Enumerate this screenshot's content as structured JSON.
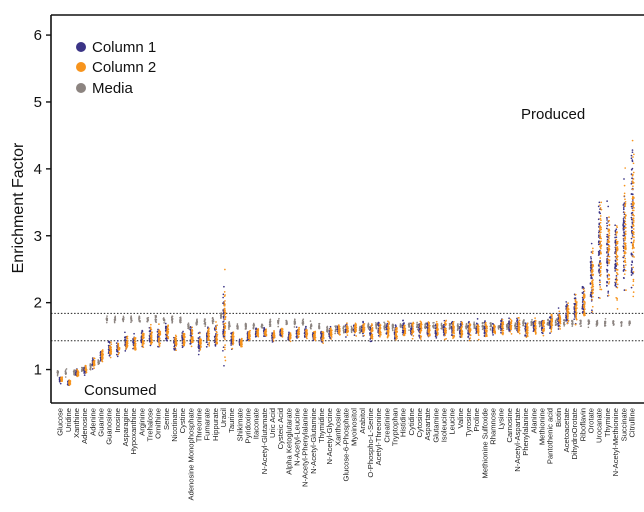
{
  "chart_data": {
    "type": "scatter",
    "ylabel": "Enrichment Factor",
    "ylim": [
      0.5,
      6.3
    ],
    "yticks": [
      1,
      2,
      3,
      4,
      5,
      6
    ],
    "legend_position": "top-left",
    "series": [
      {
        "name": "Column 1",
        "color": "#3b3486"
      },
      {
        "name": "Column 2",
        "color": "#f7941d"
      },
      {
        "name": "Media",
        "color": "#8c8480"
      }
    ],
    "thresholds": [
      1.43,
      1.84
    ],
    "annotations": {
      "produced": "Produced",
      "consumed": "Consumed"
    },
    "categories": [
      "Glucose",
      "Uridine",
      "Xanthine",
      "Adenosine",
      "Adenine",
      "Guanine",
      "Guanosine",
      "Inosine",
      "Asparagine",
      "Hypoxanthine",
      "Arginine",
      "Trehalose",
      "Ornithine",
      "Serine",
      "Nicotinate",
      "Cystine",
      "Adenosine Monophosphate",
      "Threonine",
      "Fumarate",
      "Hippurate",
      "Uracil",
      "Taurine",
      "Shikimate",
      "Pyridoxine",
      "Itaconate",
      "N-Acetyl-Glutamate",
      "Uric Acid",
      "Cysteic Acid",
      "Alpha Ketoglutarate",
      "N-Acetyl-Leucine",
      "N-Acetyl-Phenylalanine",
      "N-Acetyl-Glutamine",
      "Thymidine",
      "N-Acetyl-Glycine",
      "Xanthosine",
      "Glucose-6-Phosphate",
      "Myoinositol",
      "Arabitol",
      "O-Phospho-L-Serine",
      "Acetyl-Threonine",
      "Creatinine",
      "Tryptophan",
      "Histidine",
      "Cytidine",
      "Cytosine",
      "Aspartate",
      "Glutamine",
      "Isoleucine",
      "Leucine",
      "Valine",
      "Tyrosine",
      "Proline",
      "Methionine Sulfoxide",
      "Rhamnose",
      "Lysine",
      "Carnosine",
      "N-Acetyl-Aspartate",
      "Phenylalanine",
      "Alanine",
      "Methionine",
      "Pantothenic acid",
      "Biotin",
      "Acetoacetate",
      "DihydroOrotate",
      "Riboflavin",
      "Orotate",
      "Urocanate",
      "Thymine",
      "N-Acetyl-Methionine",
      "Succinate",
      "Citrulline"
    ],
    "media_values": [
      0.95,
      0.95,
      0.95,
      1.0,
      1.05,
      1.1,
      1.75,
      1.75,
      1.75,
      1.75,
      1.75,
      1.75,
      1.75,
      1.75,
      1.75,
      1.75,
      1.65,
      1.7,
      1.7,
      1.75,
      1.8,
      1.65,
      1.65,
      1.65,
      1.65,
      1.65,
      1.7,
      1.7,
      1.7,
      1.7,
      1.7,
      1.65,
      1.65,
      1.6,
      1.6,
      1.6,
      1.6,
      1.6,
      1.65,
      1.65,
      1.65,
      1.65,
      1.65,
      1.65,
      1.65,
      1.65,
      1.65,
      1.65,
      1.65,
      1.65,
      1.65,
      1.65,
      1.65,
      1.65,
      1.65,
      1.65,
      1.65,
      1.7,
      1.7,
      1.7,
      1.7,
      1.7,
      1.7,
      1.7,
      1.7,
      1.7,
      1.7,
      1.7,
      1.7,
      1.7,
      1.7
    ],
    "column_values": [
      0.85,
      0.8,
      0.95,
      1.0,
      1.1,
      1.2,
      1.3,
      1.3,
      1.4,
      1.4,
      1.45,
      1.5,
      1.5,
      1.55,
      1.4,
      1.45,
      1.5,
      1.4,
      1.5,
      1.5,
      1.7,
      1.45,
      1.4,
      1.5,
      1.55,
      1.55,
      1.5,
      1.55,
      1.5,
      1.55,
      1.55,
      1.5,
      1.5,
      1.55,
      1.6,
      1.6,
      1.6,
      1.6,
      1.55,
      1.6,
      1.6,
      1.55,
      1.6,
      1.6,
      1.6,
      1.6,
      1.6,
      1.6,
      1.6,
      1.6,
      1.6,
      1.6,
      1.6,
      1.6,
      1.65,
      1.65,
      1.65,
      1.6,
      1.65,
      1.65,
      1.7,
      1.75,
      1.85,
      1.9,
      2.0,
      2.35,
      2.8,
      2.75,
      2.7,
      3.0,
      3.3
    ],
    "column_spread": [
      0.08,
      0.08,
      0.08,
      0.1,
      0.12,
      0.15,
      0.18,
      0.18,
      0.2,
      0.2,
      0.2,
      0.2,
      0.22,
      0.22,
      0.22,
      0.22,
      0.22,
      0.22,
      0.25,
      0.25,
      0.9,
      0.2,
      0.1,
      0.12,
      0.12,
      0.12,
      0.12,
      0.12,
      0.12,
      0.12,
      0.12,
      0.12,
      0.15,
      0.15,
      0.15,
      0.15,
      0.15,
      0.15,
      0.2,
      0.2,
      0.2,
      0.2,
      0.2,
      0.2,
      0.2,
      0.2,
      0.2,
      0.2,
      0.2,
      0.2,
      0.2,
      0.2,
      0.2,
      0.2,
      0.2,
      0.2,
      0.2,
      0.2,
      0.2,
      0.2,
      0.2,
      0.25,
      0.3,
      0.35,
      0.4,
      0.8,
      1.1,
      1.0,
      1.0,
      1.3,
      1.8
    ]
  }
}
